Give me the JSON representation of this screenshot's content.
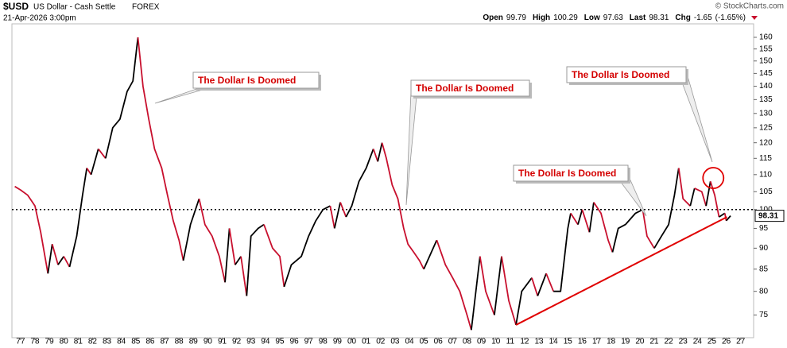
{
  "chart_data": {
    "type": "line",
    "symbol": "$USD",
    "name": "US Dollar - Cash Settle",
    "exchange": "FOREX",
    "date": "21-Apr-2026 3:00pm",
    "copyright": "© StockCharts.com",
    "quote": [
      {
        "label": "Open",
        "value": 99.79
      },
      {
        "label": "High",
        "value": 100.29
      },
      {
        "label": "Low",
        "value": 97.63
      },
      {
        "label": "Last",
        "value": 98.31
      },
      {
        "label": "Chg",
        "value": -1.65,
        "percent_label": "(-1.65%)"
      }
    ],
    "x": [
      1976.6,
      1977.0,
      1977.5,
      1978.0,
      1978.4,
      1978.9,
      1979.2,
      1979.6,
      1980.0,
      1980.4,
      1980.9,
      1981.3,
      1981.6,
      1981.9,
      1982.4,
      1982.9,
      1983.4,
      1983.9,
      1984.4,
      1984.8,
      1985.15,
      1985.5,
      1985.9,
      1986.3,
      1986.8,
      1987.2,
      1987.6,
      1988.0,
      1988.3,
      1988.8,
      1989.4,
      1989.8,
      1990.3,
      1990.8,
      1991.2,
      1991.5,
      1991.9,
      1992.3,
      1992.7,
      1993.0,
      1993.5,
      1993.9,
      1994.5,
      1995.0,
      1995.3,
      1995.8,
      1996.5,
      1997.0,
      1997.5,
      1998.0,
      1998.5,
      1998.8,
      1999.2,
      1999.6,
      2000.0,
      2000.5,
      2001.0,
      2001.5,
      2001.8,
      2002.1,
      2002.4,
      2002.8,
      2003.2,
      2003.6,
      2003.9,
      2004.3,
      2004.7,
      2005.0,
      2005.9,
      2006.5,
      2007.0,
      2007.5,
      2008.0,
      2008.3,
      2008.9,
      2009.3,
      2009.9,
      2010.4,
      2010.9,
      2011.4,
      2011.8,
      2012.5,
      2012.9,
      2013.5,
      2014.0,
      2014.5,
      2015.0,
      2015.2,
      2015.7,
      2016.0,
      2016.5,
      2016.8,
      2017.3,
      2017.8,
      2018.1,
      2018.5,
      2019.0,
      2019.7,
      2020.2,
      2020.5,
      2021.0,
      2021.5,
      2022.0,
      2022.4,
      2022.7,
      2023.0,
      2023.5,
      2023.8,
      2024.3,
      2024.6,
      2024.9,
      2025.2,
      2025.5,
      2025.9,
      2026.0,
      2026.3
    ],
    "series": [
      {
        "name": "$USD",
        "up_color": "#000000",
        "down_color": "#c8102e",
        "values": [
          106.5,
          105.5,
          104,
          101,
          94,
          84,
          91,
          86,
          88,
          85.5,
          93,
          104,
          112,
          110,
          118,
          115,
          125,
          128,
          138,
          142,
          160,
          140,
          128,
          118,
          112,
          104,
          97,
          92,
          87,
          96,
          103,
          96,
          93,
          88,
          82,
          95,
          86,
          88,
          79,
          93,
          95,
          96,
          90,
          88,
          81,
          86,
          88,
          93,
          97,
          100,
          101,
          95,
          102,
          98,
          101,
          108,
          112,
          118,
          114,
          120,
          115,
          107,
          103,
          95,
          91,
          89,
          87,
          85,
          92,
          86,
          83,
          80,
          75,
          72,
          88,
          80,
          75,
          88,
          78,
          73,
          80,
          83,
          79,
          84,
          80,
          80,
          95,
          99,
          96,
          100,
          94,
          102,
          99,
          92,
          89,
          95,
          96,
          99,
          100,
          93,
          90,
          93,
          96,
          104,
          112,
          103,
          101,
          106,
          105,
          101,
          108,
          104,
          98,
          99,
          97,
          98.31
        ]
      }
    ],
    "log_scale": true,
    "grid": false,
    "xlim": [
      1976.4,
      2027.9
    ],
    "ylim": [
      70.5,
      166
    ],
    "yticks": [
      75,
      80,
      85,
      90,
      95,
      100,
      105,
      110,
      115,
      120,
      125,
      130,
      135,
      140,
      145,
      150,
      155,
      160
    ],
    "xticks": [
      {
        "value": 1977,
        "label": "77"
      },
      {
        "value": 1978,
        "label": "78"
      },
      {
        "value": 1979,
        "label": "79"
      },
      {
        "value": 1980,
        "label": "80"
      },
      {
        "value": 1981,
        "label": "81"
      },
      {
        "value": 1982,
        "label": "82"
      },
      {
        "value": 1983,
        "label": "83"
      },
      {
        "value": 1984,
        "label": "84"
      },
      {
        "value": 1985,
        "label": "85"
      },
      {
        "value": 1986,
        "label": "86"
      },
      {
        "value": 1987,
        "label": "87"
      },
      {
        "value": 1988,
        "label": "88"
      },
      {
        "value": 1989,
        "label": "89"
      },
      {
        "value": 1990,
        "label": "90"
      },
      {
        "value": 1991,
        "label": "91"
      },
      {
        "value": 1992,
        "label": "92"
      },
      {
        "value": 1993,
        "label": "93"
      },
      {
        "value": 1994,
        "label": "94"
      },
      {
        "value": 1995,
        "label": "95"
      },
      {
        "value": 1996,
        "label": "96"
      },
      {
        "value": 1997,
        "label": "97"
      },
      {
        "value": 1998,
        "label": "98"
      },
      {
        "value": 1999,
        "label": "99"
      },
      {
        "value": 2000,
        "label": "00"
      },
      {
        "value": 2001,
        "label": "01"
      },
      {
        "value": 2002,
        "label": "02"
      },
      {
        "value": 2003,
        "label": "03"
      },
      {
        "value": 2004,
        "label": "04"
      },
      {
        "value": 2005,
        "label": "05"
      },
      {
        "value": 2006,
        "label": "06"
      },
      {
        "value": 2007,
        "label": "07"
      },
      {
        "value": 2008,
        "label": "08"
      },
      {
        "value": 2009,
        "label": "09"
      },
      {
        "value": 2010,
        "label": "10"
      },
      {
        "value": 2011,
        "label": "11"
      },
      {
        "value": 2012,
        "label": "12"
      },
      {
        "value": 2013,
        "label": "13"
      },
      {
        "value": 2014,
        "label": "14"
      },
      {
        "value": 2015,
        "label": "15"
      },
      {
        "value": 2016,
        "label": "16"
      },
      {
        "value": 2017,
        "label": "17"
      },
      {
        "value": 2018,
        "label": "18"
      },
      {
        "value": 2019,
        "label": "19"
      },
      {
        "value": 2020,
        "label": "20"
      },
      {
        "value": 2021,
        "label": "21"
      },
      {
        "value": 2022,
        "label": "22"
      },
      {
        "value": 2023,
        "label": "23"
      },
      {
        "value": 2024,
        "label": "24"
      },
      {
        "value": 2025,
        "label": "25"
      },
      {
        "value": 2026,
        "label": "26"
      },
      {
        "value": 2027,
        "label": "27"
      }
    ],
    "reference_line": 100,
    "trendline": {
      "x": [
        2011.4,
        2026.05
      ],
      "values": [
        73,
        98
      ],
      "color": "#e00000"
    },
    "highlight": {
      "x": 2025.1,
      "value": 109,
      "color": "#e00000"
    },
    "annotations": [
      "The Dollar Is Doomed",
      "The Dollar Is Doomed",
      "The Dollar Is Doomed",
      "The Dollar Is Doomed"
    ]
  }
}
